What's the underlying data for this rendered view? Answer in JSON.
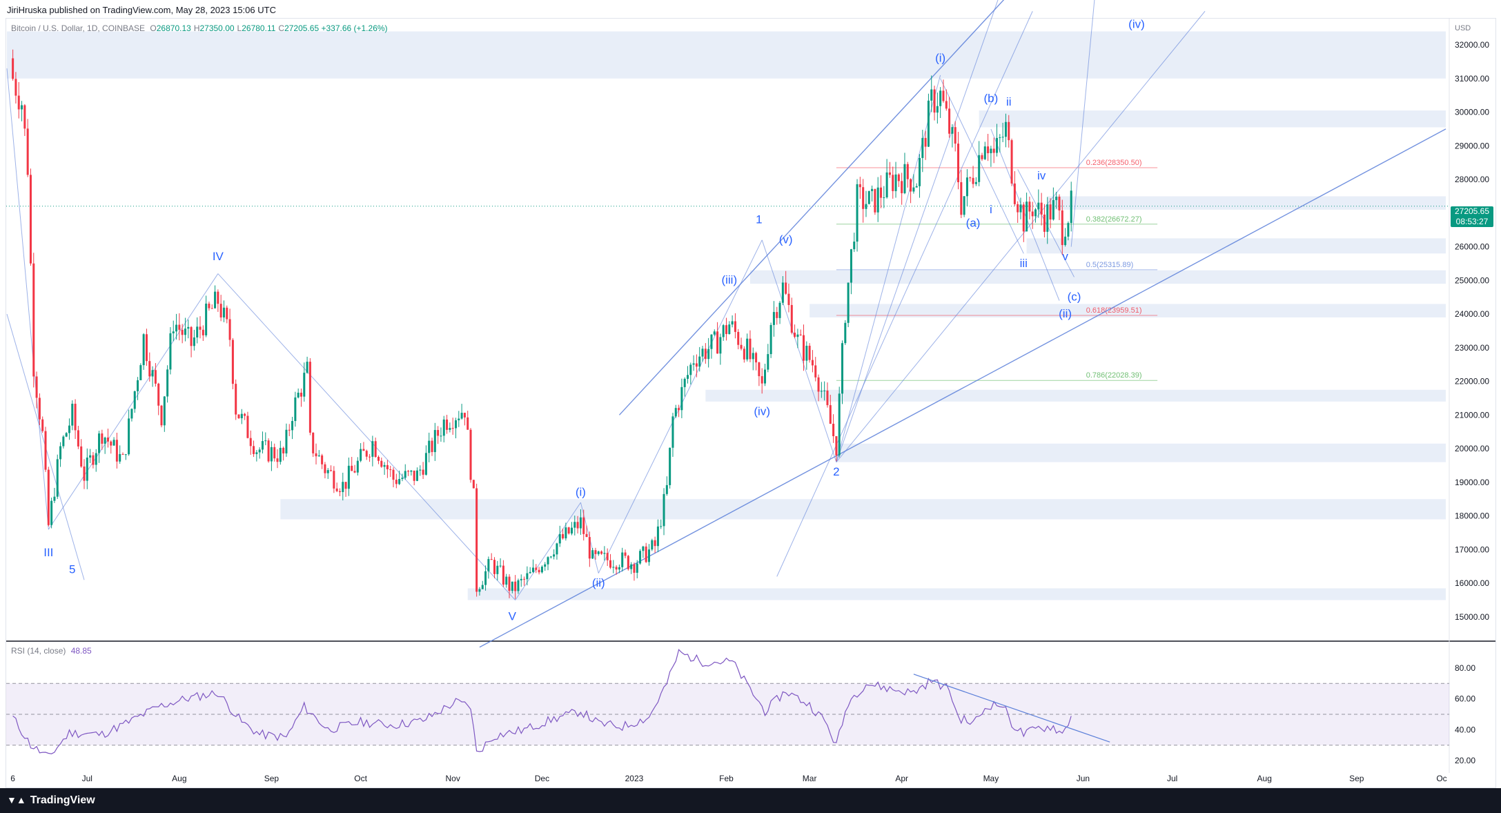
{
  "header": {
    "publisher": "JiriHruska published on TradingView.com, May 28, 2023 15:06 UTC",
    "symbol": "Bitcoin / U.S. Dollar, 1D, COINBASE",
    "ohlc": [
      {
        "k": "O",
        "v": "26870.13"
      },
      {
        "k": "H",
        "v": "27350.00"
      },
      {
        "k": "L",
        "v": "26780.11"
      },
      {
        "k": "C",
        "v": "27205.65 +337.66 (+1.26%)"
      }
    ]
  },
  "price_tag": {
    "price": "27205.65",
    "countdown": "08:53:27"
  },
  "rsi": {
    "label": "RSI (14, close)",
    "value": "48.85"
  },
  "brand": {
    "name": "TradingView"
  },
  "colors": {
    "up": "#089981",
    "down": "#f23645",
    "wave": "#5b7fd9",
    "rsi": "#7e57c2",
    "zone": "#e8eef8"
  },
  "chart_data": [
    {
      "type": "candlestick",
      "axis_currency": "USD",
      "x_ticks": [
        "6",
        "Jul",
        "Aug",
        "Sep",
        "Oct",
        "Nov",
        "Dec",
        "2023",
        "Feb",
        "Mar",
        "Apr",
        "May",
        "Jun",
        "Jul",
        "Aug",
        "Sep",
        "Oc"
      ],
      "y_ticks": [
        15000,
        16000,
        17000,
        18000,
        19000,
        20000,
        21000,
        22000,
        23000,
        24000,
        25000,
        26000,
        27000,
        28000,
        29000,
        30000,
        31000,
        32000
      ],
      "ylim": [
        14300,
        32800
      ],
      "closes": [
        {
          "d": "2022-06-06",
          "v": 31000
        },
        {
          "d": "2022-06-09",
          "v": 30300
        },
        {
          "d": "2022-06-11",
          "v": 28400
        },
        {
          "d": "2022-06-13",
          "v": 22500
        },
        {
          "d": "2022-06-16",
          "v": 20400
        },
        {
          "d": "2022-06-18",
          "v": 17700
        },
        {
          "d": "2022-06-22",
          "v": 20000
        },
        {
          "d": "2022-06-26",
          "v": 21000
        },
        {
          "d": "2022-06-30",
          "v": 19200
        },
        {
          "d": "2022-07-06",
          "v": 20500
        },
        {
          "d": "2022-07-13",
          "v": 19600
        },
        {
          "d": "2022-07-20",
          "v": 23300
        },
        {
          "d": "2022-07-26",
          "v": 21000
        },
        {
          "d": "2022-07-30",
          "v": 23800
        },
        {
          "d": "2022-08-05",
          "v": 23100
        },
        {
          "d": "2022-08-10",
          "v": 23900
        },
        {
          "d": "2022-08-14",
          "v": 24400
        },
        {
          "d": "2022-08-18",
          "v": 23300
        },
        {
          "d": "2022-08-20",
          "v": 21200
        },
        {
          "d": "2022-08-27",
          "v": 20000
        },
        {
          "d": "2022-09-05",
          "v": 19800
        },
        {
          "d": "2022-09-08",
          "v": 21100
        },
        {
          "d": "2022-09-13",
          "v": 22300
        },
        {
          "d": "2022-09-14",
          "v": 20200
        },
        {
          "d": "2022-09-19",
          "v": 19400
        },
        {
          "d": "2022-09-25",
          "v": 18900
        },
        {
          "d": "2022-10-05",
          "v": 20200
        },
        {
          "d": "2022-10-12",
          "v": 19100
        },
        {
          "d": "2022-10-20",
          "v": 19200
        },
        {
          "d": "2022-10-29",
          "v": 20800
        },
        {
          "d": "2022-11-05",
          "v": 21200
        },
        {
          "d": "2022-11-08",
          "v": 18500
        },
        {
          "d": "2022-11-09",
          "v": 15900
        },
        {
          "d": "2022-11-14",
          "v": 16600
        },
        {
          "d": "2022-11-21",
          "v": 15800
        },
        {
          "d": "2022-11-28",
          "v": 16300
        },
        {
          "d": "2022-12-05",
          "v": 17100
        },
        {
          "d": "2022-12-14",
          "v": 17800
        },
        {
          "d": "2022-12-18",
          "v": 16700
        },
        {
          "d": "2022-12-27",
          "v": 16700
        },
        {
          "d": "2023-01-01",
          "v": 16600
        },
        {
          "d": "2023-01-08",
          "v": 17100
        },
        {
          "d": "2023-01-12",
          "v": 18800
        },
        {
          "d": "2023-01-14",
          "v": 20900
        },
        {
          "d": "2023-01-21",
          "v": 22700
        },
        {
          "d": "2023-01-28",
          "v": 23100
        },
        {
          "d": "2023-02-02",
          "v": 23700
        },
        {
          "d": "2023-02-08",
          "v": 22900
        },
        {
          "d": "2023-02-13",
          "v": 21800
        },
        {
          "d": "2023-02-16",
          "v": 23800
        },
        {
          "d": "2023-02-20",
          "v": 24800
        },
        {
          "d": "2023-02-25",
          "v": 23200
        },
        {
          "d": "2023-03-03",
          "v": 22400
        },
        {
          "d": "2023-03-09",
          "v": 20400
        },
        {
          "d": "2023-03-10",
          "v": 20100
        },
        {
          "d": "2023-03-13",
          "v": 24100
        },
        {
          "d": "2023-03-17",
          "v": 27400
        },
        {
          "d": "2023-03-22",
          "v": 27300
        },
        {
          "d": "2023-03-30",
          "v": 28100
        },
        {
          "d": "2023-04-06",
          "v": 28000
        },
        {
          "d": "2023-04-11",
          "v": 30300
        },
        {
          "d": "2023-04-14",
          "v": 30500
        },
        {
          "d": "2023-04-19",
          "v": 28800
        },
        {
          "d": "2023-04-21",
          "v": 27300
        },
        {
          "d": "2023-04-26",
          "v": 28400
        },
        {
          "d": "2023-04-29",
          "v": 29300
        },
        {
          "d": "2023-05-02",
          "v": 28700
        },
        {
          "d": "2023-05-06",
          "v": 29500
        },
        {
          "d": "2023-05-09",
          "v": 27700
        },
        {
          "d": "2023-05-12",
          "v": 26800
        },
        {
          "d": "2023-05-15",
          "v": 27200
        },
        {
          "d": "2023-05-19",
          "v": 26900
        },
        {
          "d": "2023-05-23",
          "v": 27200
        },
        {
          "d": "2023-05-25",
          "v": 26500
        },
        {
          "d": "2023-05-28",
          "v": 27205.65
        }
      ],
      "fib_levels": [
        {
          "ratio": "0.236",
          "price": 28350.5,
          "label": "0.236(28350.50)",
          "color": "#f23645"
        },
        {
          "ratio": "0.382",
          "price": 26672.27,
          "label": "0.382(26672.27)",
          "color": "#4caf50"
        },
        {
          "ratio": "0.5",
          "price": 25315.89,
          "label": "0.5(25315.89)",
          "color": "#5b7fd9"
        },
        {
          "ratio": "0.618",
          "price": 23959.51,
          "label": "0.618(23959.51)",
          "color": "#f23645"
        },
        {
          "ratio": "0.786",
          "price": 22028.39,
          "label": "0.786(22028.39)",
          "color": "#4caf50"
        }
      ],
      "wave_labels": [
        {
          "text": "III",
          "d": "2022-06-18",
          "p": 16800
        },
        {
          "text": "5",
          "d": "2022-06-26",
          "p": 16300
        },
        {
          "text": "IV",
          "d": "2022-08-14",
          "p": 25600
        },
        {
          "text": "V",
          "d": "2022-11-21",
          "p": 14900
        },
        {
          "text": "(i)",
          "d": "2022-12-14",
          "p": 18600
        },
        {
          "text": "(ii)",
          "d": "2022-12-20",
          "p": 15900
        },
        {
          "text": "(iii)",
          "d": "2023-02-02",
          "p": 24900
        },
        {
          "text": "(iv)",
          "d": "2023-02-13",
          "p": 21000
        },
        {
          "text": "1",
          "d": "2023-02-12",
          "p": 26700
        },
        {
          "text": "(v)",
          "d": "2023-02-21",
          "p": 26100
        },
        {
          "text": "2",
          "d": "2023-03-10",
          "p": 19200
        },
        {
          "text": "(i)",
          "d": "2023-04-14",
          "p": 31500
        },
        {
          "text": "(a)",
          "d": "2023-04-25",
          "p": 26600
        },
        {
          "text": "(b)",
          "d": "2023-05-01",
          "p": 30300
        },
        {
          "text": "ii",
          "d": "2023-05-07",
          "p": 30200
        },
        {
          "text": "i",
          "d": "2023-05-01",
          "p": 27000
        },
        {
          "text": "iii",
          "d": "2023-05-12",
          "p": 25400
        },
        {
          "text": "iv",
          "d": "2023-05-18",
          "p": 28000
        },
        {
          "text": "v",
          "d": "2023-05-26",
          "p": 25600
        },
        {
          "text": "(c)",
          "d": "2023-05-29",
          "p": 24400
        },
        {
          "text": "(ii)",
          "d": "2023-05-26",
          "p": 23900
        },
        {
          "text": "(iv)",
          "d": "2023-06-19",
          "p": 32500
        }
      ]
    },
    {
      "type": "line",
      "title": "RSI (14, close)",
      "y_ticks": [
        20,
        40,
        60,
        80
      ],
      "ylim": [
        12,
        96
      ],
      "bands": [
        30,
        50,
        70
      ],
      "series": [
        {
          "values": [
            {
              "d": "2022-06-06",
              "v": 48
            },
            {
              "d": "2022-06-12",
              "v": 30
            },
            {
              "d": "2022-06-18",
              "v": 22
            },
            {
              "d": "2022-06-25",
              "v": 38
            },
            {
              "d": "2022-07-06",
              "v": 37
            },
            {
              "d": "2022-07-15",
              "v": 45
            },
            {
              "d": "2022-07-25",
              "v": 55
            },
            {
              "d": "2022-08-03",
              "v": 60
            },
            {
              "d": "2022-08-14",
              "v": 64
            },
            {
              "d": "2022-08-22",
              "v": 45
            },
            {
              "d": "2022-08-28",
              "v": 37
            },
            {
              "d": "2022-09-06",
              "v": 35
            },
            {
              "d": "2022-09-12",
              "v": 55
            },
            {
              "d": "2022-09-20",
              "v": 40
            },
            {
              "d": "2022-10-01",
              "v": 45
            },
            {
              "d": "2022-10-12",
              "v": 43
            },
            {
              "d": "2022-10-22",
              "v": 46
            },
            {
              "d": "2022-11-02",
              "v": 58
            },
            {
              "d": "2022-11-07",
              "v": 55
            },
            {
              "d": "2022-11-09",
              "v": 25
            },
            {
              "d": "2022-11-15",
              "v": 36
            },
            {
              "d": "2022-11-25",
              "v": 40
            },
            {
              "d": "2022-12-05",
              "v": 47
            },
            {
              "d": "2022-12-14",
              "v": 52
            },
            {
              "d": "2022-12-20",
              "v": 44
            },
            {
              "d": "2022-12-28",
              "v": 42
            },
            {
              "d": "2023-01-06",
              "v": 48
            },
            {
              "d": "2023-01-12",
              "v": 70
            },
            {
              "d": "2023-01-16",
              "v": 90
            },
            {
              "d": "2023-01-24",
              "v": 84
            },
            {
              "d": "2023-02-03",
              "v": 84
            },
            {
              "d": "2023-02-09",
              "v": 66
            },
            {
              "d": "2023-02-14",
              "v": 52
            },
            {
              "d": "2023-02-21",
              "v": 65
            },
            {
              "d": "2023-03-01",
              "v": 56
            },
            {
              "d": "2023-03-06",
              "v": 46
            },
            {
              "d": "2023-03-10",
              "v": 30
            },
            {
              "d": "2023-03-14",
              "v": 58
            },
            {
              "d": "2023-03-20",
              "v": 70
            },
            {
              "d": "2023-03-29",
              "v": 66
            },
            {
              "d": "2023-04-05",
              "v": 64
            },
            {
              "d": "2023-04-11",
              "v": 72
            },
            {
              "d": "2023-04-17",
              "v": 66
            },
            {
              "d": "2023-04-20",
              "v": 48
            },
            {
              "d": "2023-04-25",
              "v": 44
            },
            {
              "d": "2023-04-30",
              "v": 56
            },
            {
              "d": "2023-05-05",
              "v": 56
            },
            {
              "d": "2023-05-08",
              "v": 44
            },
            {
              "d": "2023-05-12",
              "v": 37
            },
            {
              "d": "2023-05-17",
              "v": 41
            },
            {
              "d": "2023-05-22",
              "v": 42
            },
            {
              "d": "2023-05-25",
              "v": 37
            },
            {
              "d": "2023-05-28",
              "v": 48.85
            }
          ]
        }
      ]
    }
  ]
}
